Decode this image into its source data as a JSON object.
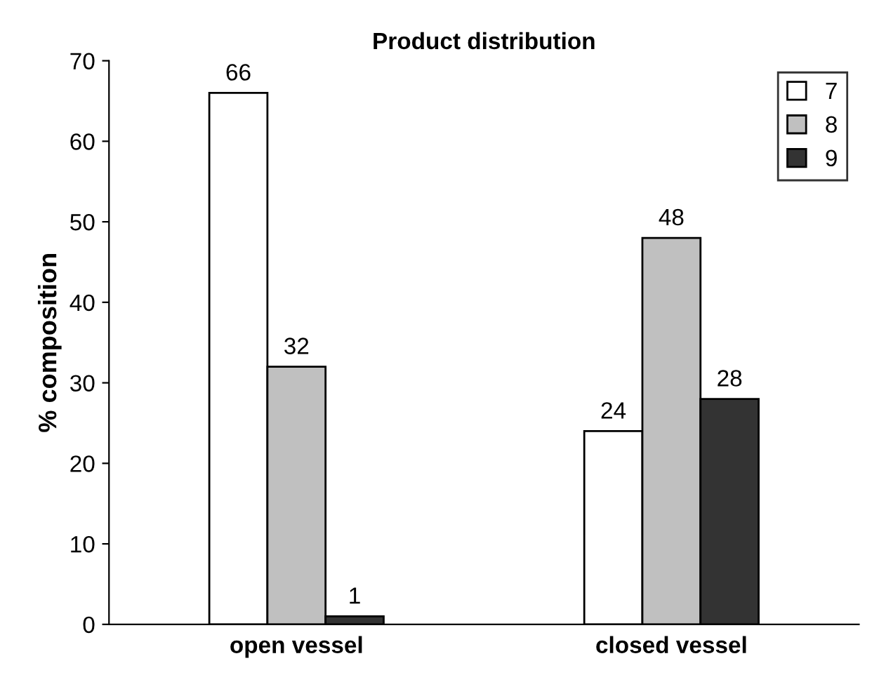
{
  "chart_data": {
    "type": "bar",
    "title": "Product distribution",
    "ylabel": "% composition",
    "categories": [
      "open vessel",
      "closed vessel"
    ],
    "series": [
      {
        "name": "7",
        "color": "#ffffff",
        "values": [
          66,
          24
        ]
      },
      {
        "name": "8",
        "color": "#c0c0c0",
        "values": [
          32,
          48
        ]
      },
      {
        "name": "9",
        "color": "#333333",
        "values": [
          1,
          28
        ]
      }
    ],
    "ylim": [
      0,
      70
    ],
    "yticks": [
      0,
      10,
      20,
      30,
      40,
      50,
      60,
      70
    ],
    "data_labels": true,
    "legend": "top right",
    "grid": false
  }
}
